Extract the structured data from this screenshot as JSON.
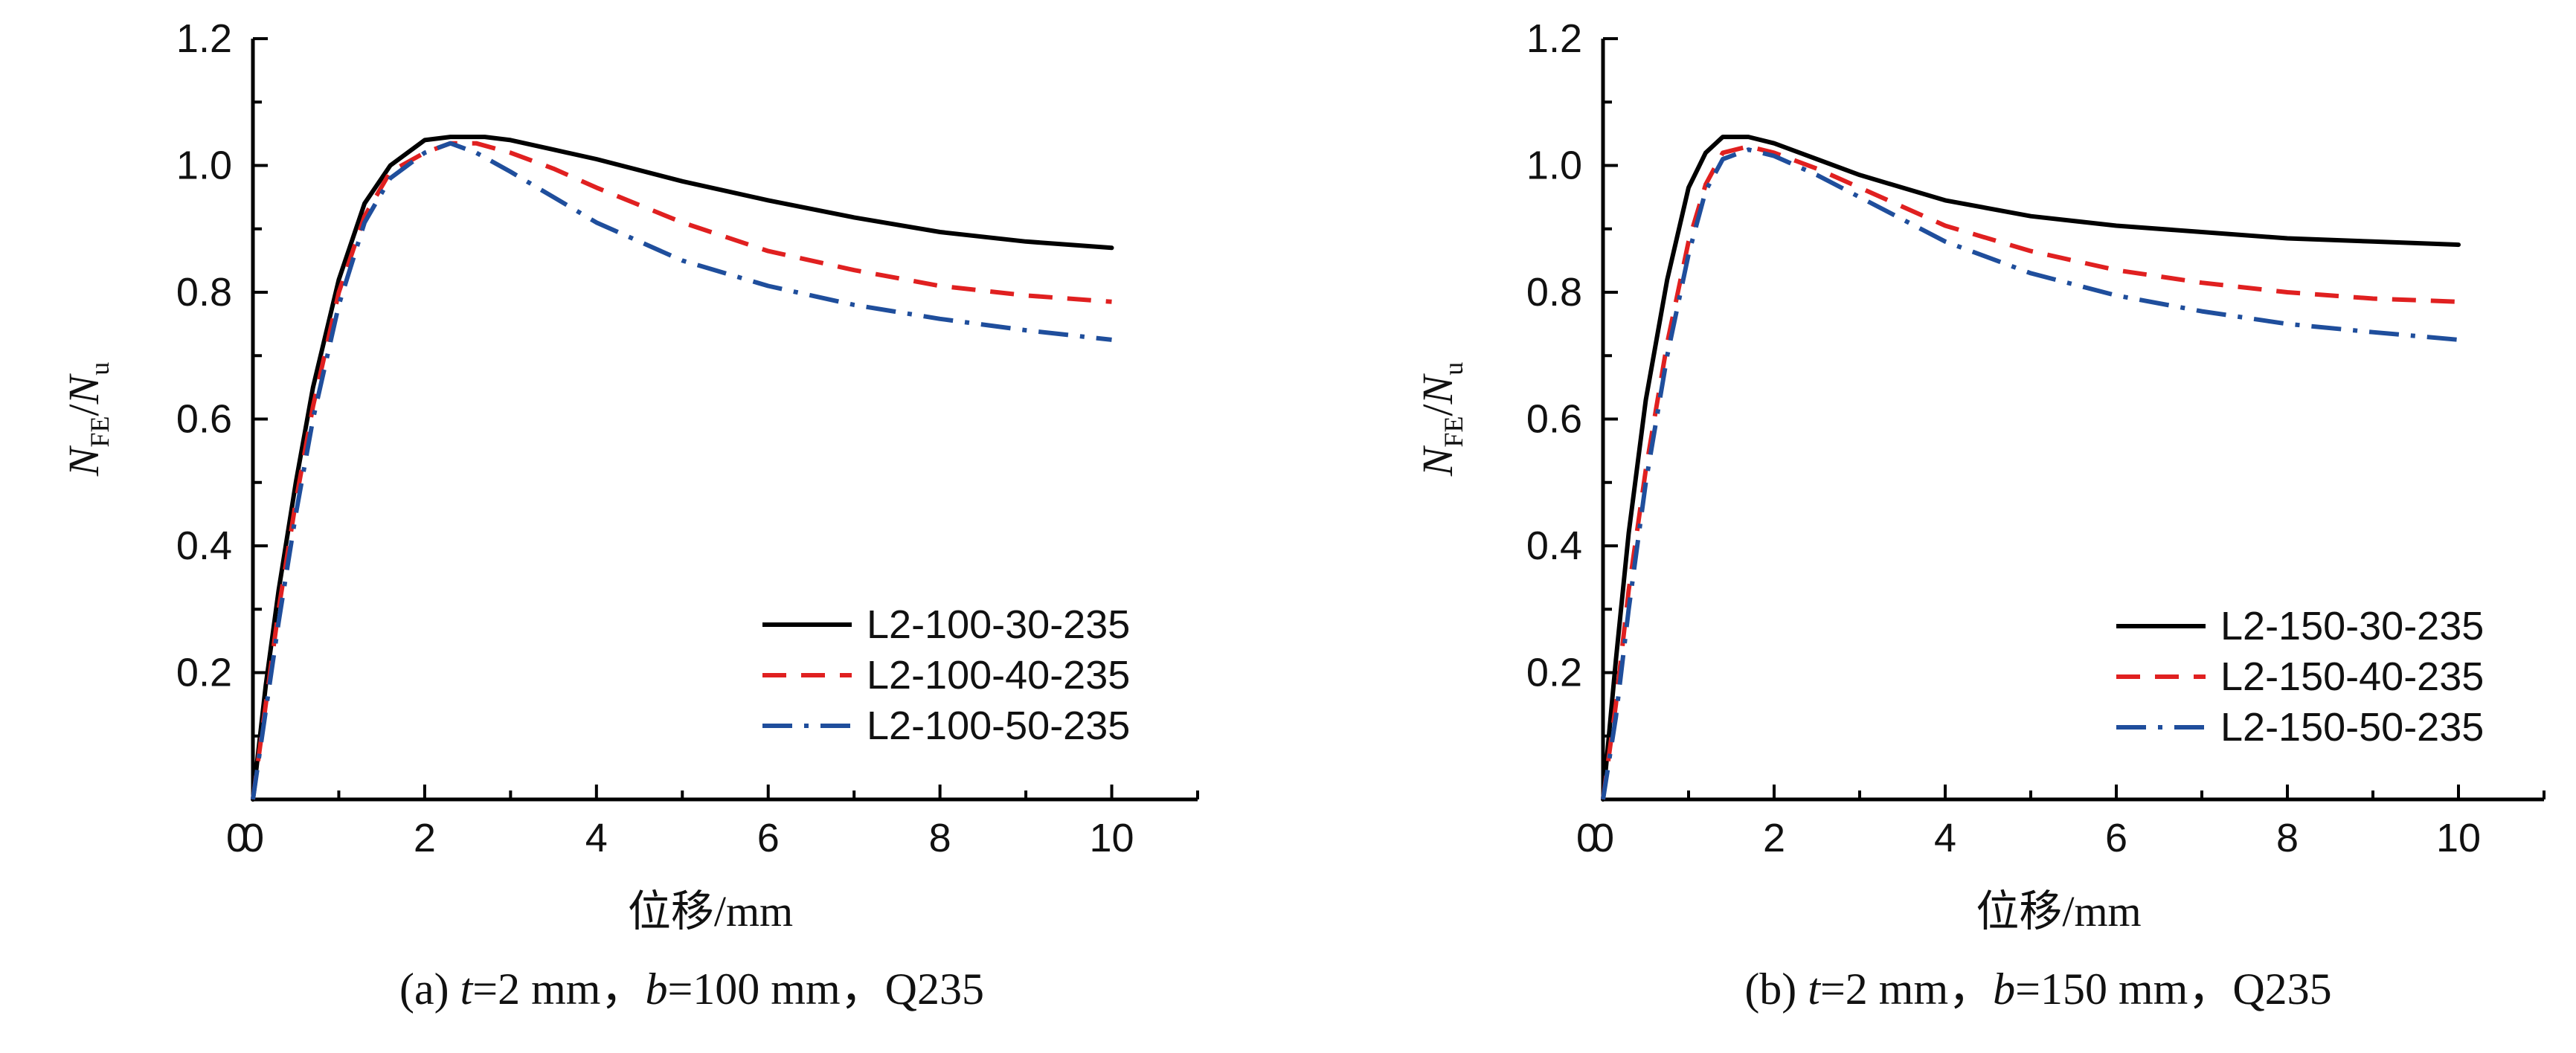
{
  "chart_data": [
    {
      "type": "line",
      "caption_prefix": "(a) ",
      "caption_var1": "t",
      "caption_mid": "=2 mm，",
      "caption_var2": "b",
      "caption_end": "=100 mm，Q235",
      "xlabel": "位移/mm",
      "ylabel_var": "N",
      "ylabel_sub1": "FE",
      "ylabel_sep": "/",
      "ylabel_sub2": "u",
      "xlim": [
        0,
        11
      ],
      "ylim": [
        0,
        1.2
      ],
      "xticks": [
        "0",
        "2",
        "4",
        "6",
        "8",
        "10"
      ],
      "yticks": [
        "0.2",
        "0.4",
        "0.6",
        "0.8",
        "1.0",
        "1.2"
      ],
      "legend_position": "bottom-right",
      "series": [
        {
          "name": "L2-100-30-235",
          "color": "#000000",
          "style": "solid",
          "x": [
            0,
            0.15,
            0.3,
            0.5,
            0.7,
            1.0,
            1.3,
            1.6,
            2.0,
            2.3,
            2.7,
            3.0,
            3.5,
            4.0,
            5.0,
            6.0,
            7.0,
            8.0,
            9.0,
            10.0
          ],
          "y": [
            0,
            0.18,
            0.33,
            0.5,
            0.65,
            0.82,
            0.94,
            1.0,
            1.04,
            1.045,
            1.045,
            1.04,
            1.025,
            1.01,
            0.975,
            0.945,
            0.918,
            0.895,
            0.88,
            0.87
          ]
        },
        {
          "name": "L2-100-40-235",
          "color": "#e02020",
          "style": "dashed",
          "x": [
            0,
            0.15,
            0.3,
            0.5,
            0.7,
            1.0,
            1.3,
            1.6,
            2.0,
            2.3,
            2.6,
            3.0,
            3.5,
            4.0,
            5.0,
            6.0,
            7.0,
            8.0,
            9.0,
            10.0
          ],
          "y": [
            0,
            0.15,
            0.3,
            0.47,
            0.62,
            0.8,
            0.92,
            0.99,
            1.02,
            1.035,
            1.035,
            1.02,
            0.995,
            0.965,
            0.91,
            0.865,
            0.835,
            0.81,
            0.795,
            0.785
          ]
        },
        {
          "name": "L2-100-50-235",
          "color": "#1f4e9c",
          "style": "dashdot",
          "x": [
            0,
            0.15,
            0.3,
            0.5,
            0.7,
            1.0,
            1.3,
            1.6,
            2.0,
            2.3,
            2.6,
            3.0,
            3.5,
            4.0,
            5.0,
            6.0,
            7.0,
            8.0,
            9.0,
            10.0
          ],
          "y": [
            0,
            0.14,
            0.28,
            0.45,
            0.6,
            0.78,
            0.91,
            0.98,
            1.02,
            1.035,
            1.02,
            0.99,
            0.95,
            0.91,
            0.85,
            0.81,
            0.78,
            0.758,
            0.74,
            0.725
          ]
        }
      ]
    },
    {
      "type": "line",
      "caption_prefix": "(b) ",
      "caption_var1": "t",
      "caption_mid": "=2 mm，",
      "caption_var2": "b",
      "caption_end": "=150 mm，Q235",
      "xlabel": "位移/mm",
      "ylabel_var": "N",
      "ylabel_sub1": "FE",
      "ylabel_sep": "/",
      "ylabel_sub2": "u",
      "xlim": [
        0,
        11
      ],
      "ylim": [
        0,
        1.2
      ],
      "xticks": [
        "0",
        "2",
        "4",
        "6",
        "8",
        "10"
      ],
      "yticks": [
        "0.2",
        "0.4",
        "0.6",
        "0.8",
        "1.0",
        "1.2"
      ],
      "legend_position": "right",
      "series": [
        {
          "name": "L2-150-30-235",
          "color": "#000000",
          "style": "solid",
          "x": [
            0,
            0.15,
            0.3,
            0.5,
            0.75,
            1.0,
            1.2,
            1.4,
            1.7,
            2.0,
            2.5,
            3.0,
            4.0,
            5.0,
            6.0,
            7.0,
            8.0,
            9.0,
            10.0
          ],
          "y": [
            0,
            0.22,
            0.42,
            0.63,
            0.82,
            0.965,
            1.02,
            1.045,
            1.045,
            1.035,
            1.01,
            0.985,
            0.945,
            0.92,
            0.905,
            0.895,
            0.885,
            0.88,
            0.875
          ]
        },
        {
          "name": "L2-150-40-235",
          "color": "#e02020",
          "style": "dashed",
          "x": [
            0,
            0.15,
            0.3,
            0.5,
            0.75,
            1.0,
            1.2,
            1.4,
            1.7,
            2.0,
            2.5,
            3.0,
            4.0,
            5.0,
            6.0,
            7.0,
            8.0,
            9.0,
            10.0
          ],
          "y": [
            0,
            0.15,
            0.33,
            0.52,
            0.72,
            0.88,
            0.97,
            1.02,
            1.03,
            1.02,
            0.995,
            0.965,
            0.905,
            0.865,
            0.835,
            0.815,
            0.8,
            0.79,
            0.785
          ]
        },
        {
          "name": "L2-150-50-235",
          "color": "#1f4e9c",
          "style": "dashdot",
          "x": [
            0,
            0.15,
            0.3,
            0.5,
            0.75,
            1.0,
            1.2,
            1.4,
            1.7,
            2.0,
            2.5,
            3.0,
            4.0,
            5.0,
            6.0,
            7.0,
            8.0,
            9.0,
            10.0
          ],
          "y": [
            0,
            0.13,
            0.3,
            0.5,
            0.7,
            0.86,
            0.96,
            1.01,
            1.025,
            1.015,
            0.985,
            0.95,
            0.88,
            0.83,
            0.795,
            0.77,
            0.75,
            0.737,
            0.725
          ]
        }
      ]
    }
  ]
}
